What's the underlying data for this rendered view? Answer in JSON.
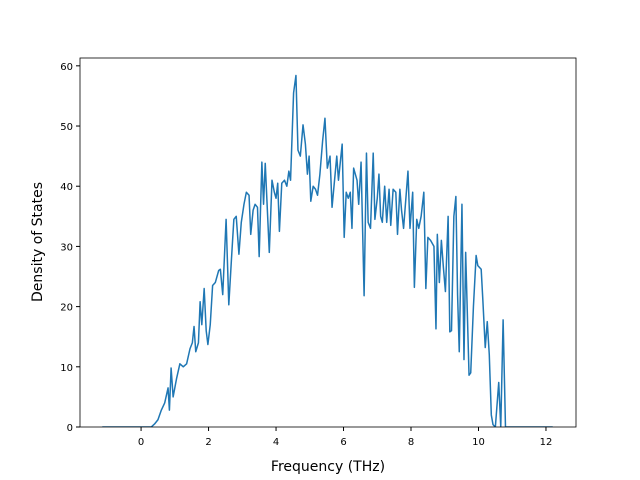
{
  "chart_data": {
    "type": "line",
    "xlabel": "Frequency (THz)",
    "ylabel": "Density of States",
    "x": [
      -1.15,
      0.3,
      0.4,
      0.5,
      0.6,
      0.7,
      0.8,
      0.84,
      0.89,
      0.95,
      1.05,
      1.15,
      1.25,
      1.35,
      1.45,
      1.52,
      1.57,
      1.62,
      1.7,
      1.75,
      1.8,
      1.87,
      1.93,
      1.98,
      2.05,
      2.12,
      2.2,
      2.3,
      2.35,
      2.42,
      2.52,
      2.6,
      2.68,
      2.75,
      2.82,
      2.9,
      2.97,
      3.05,
      3.12,
      3.2,
      3.25,
      3.32,
      3.38,
      3.45,
      3.5,
      3.58,
      3.63,
      3.68,
      3.8,
      3.88,
      3.95,
      4.0,
      4.05,
      4.1,
      4.17,
      4.25,
      4.32,
      4.38,
      4.43,
      4.52,
      4.59,
      4.65,
      4.72,
      4.8,
      4.87,
      4.93,
      4.98,
      5.03,
      5.1,
      5.17,
      5.23,
      5.3,
      5.38,
      5.45,
      5.52,
      5.6,
      5.66,
      5.8,
      5.85,
      5.96,
      6.02,
      6.08,
      6.14,
      6.2,
      6.25,
      6.3,
      6.4,
      6.45,
      6.52,
      6.61,
      6.68,
      6.73,
      6.8,
      6.88,
      6.93,
      7.0,
      7.05,
      7.1,
      7.15,
      7.22,
      7.28,
      7.35,
      7.4,
      7.47,
      7.55,
      7.6,
      7.67,
      7.72,
      7.78,
      7.91,
      7.97,
      8.05,
      8.1,
      8.17,
      8.23,
      8.3,
      8.38,
      8.44,
      8.5,
      8.58,
      8.68,
      8.74,
      8.78,
      8.84,
      8.9,
      8.96,
      9.02,
      9.1,
      9.15,
      9.2,
      9.27,
      9.33,
      9.38,
      9.43,
      9.51,
      9.57,
      9.62,
      9.72,
      9.77,
      9.85,
      9.93,
      9.98,
      10.08,
      10.13,
      10.2,
      10.26,
      10.32,
      10.38,
      10.43,
      10.5,
      10.6,
      10.66,
      10.73,
      10.8,
      12.2
    ],
    "series": [
      {
        "color": "#1f77b4",
        "values": [
          0,
          0,
          0.5,
          1.2,
          2.8,
          4,
          6.5,
          2.8,
          9.8,
          5,
          8,
          10.5,
          10,
          10.5,
          13,
          14,
          16.7,
          12.5,
          14,
          20.8,
          17,
          23,
          16,
          13.7,
          17,
          23.5,
          24,
          26,
          26.2,
          22,
          34.5,
          20.3,
          28,
          34.5,
          35,
          28.7,
          34,
          37,
          39,
          38.5,
          32,
          36,
          37,
          36.5,
          28.3,
          44,
          37,
          43.8,
          29,
          41,
          39,
          38,
          40.5,
          32.5,
          40.5,
          41,
          40,
          42.5,
          41,
          55.5,
          58.4,
          46,
          45,
          50.2,
          47,
          42,
          45,
          37.5,
          40,
          39.5,
          38.5,
          42,
          47.5,
          51.3,
          43,
          45,
          36.5,
          45,
          41,
          47,
          31.5,
          39,
          38,
          39,
          33,
          43,
          41,
          37,
          44,
          21.8,
          45.5,
          34,
          33,
          45.5,
          34.5,
          38,
          42,
          35,
          34,
          40,
          34,
          39.5,
          33.5,
          39.5,
          39,
          32,
          39.5,
          36,
          33,
          42.5,
          33,
          39,
          23.2,
          34.5,
          33,
          35,
          39,
          23,
          31.5,
          31,
          30,
          16.3,
          32,
          24,
          31,
          26.5,
          22.5,
          35,
          15.8,
          16,
          35,
          38.3,
          22,
          12.5,
          37,
          11.2,
          29,
          8.6,
          9,
          20,
          28.5,
          26.8,
          26.2,
          21,
          13.2,
          17.5,
          12,
          2,
          0.4,
          0,
          7.4,
          0,
          17.8,
          0,
          0
        ]
      }
    ],
    "xlim": [
      -1.81,
      12.89
    ],
    "ylim": [
      0,
      61.3
    ],
    "xticks": [
      0,
      2,
      4,
      6,
      8,
      10,
      12
    ],
    "yticks": [
      0,
      10,
      20,
      30,
      40,
      50,
      60
    ]
  }
}
